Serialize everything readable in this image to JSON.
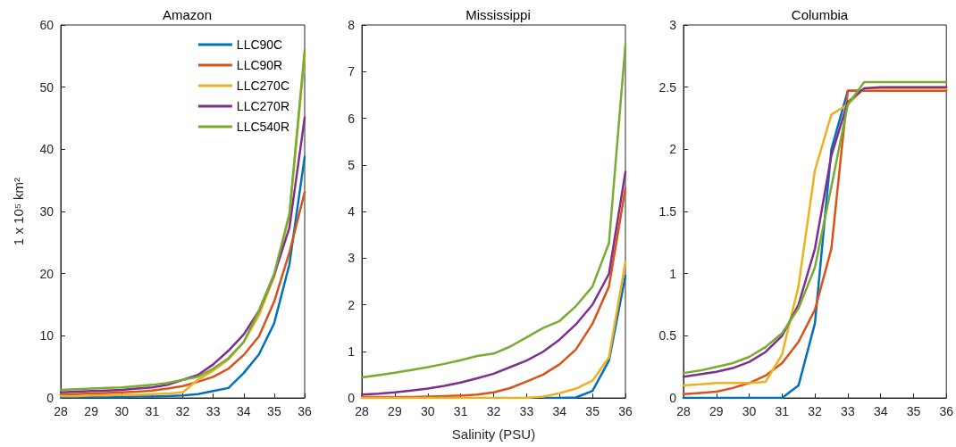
{
  "chart_data": [
    {
      "type": "line",
      "title": "Amazon",
      "ylabel": "1 x 10⁵ km²",
      "x": [
        28,
        28.5,
        29,
        29.5,
        30,
        30.5,
        31,
        31.5,
        32,
        32.5,
        33,
        33.5,
        34,
        34.5,
        35,
        35.5,
        36
      ],
      "xlim": [
        28,
        36
      ],
      "xticks": [
        28,
        29,
        30,
        31,
        32,
        33,
        34,
        35,
        36
      ],
      "ylim": [
        0,
        60
      ],
      "yticks": [
        0,
        10,
        20,
        30,
        40,
        50,
        60
      ],
      "legend": "top right",
      "marker": "none",
      "grid": false,
      "series": [
        {
          "name": "LLC90C",
          "color": "#0072bd",
          "values": [
            0.1,
            0.1,
            0.1,
            0.1,
            0.1,
            0.2,
            0.2,
            0.3,
            0.4,
            0.6,
            1.1,
            1.6,
            4.0,
            7.0,
            12.0,
            21.5,
            38.8
          ]
        },
        {
          "name": "LLC90R",
          "color": "#d95319",
          "values": [
            0.5,
            0.6,
            0.7,
            0.8,
            0.9,
            1.0,
            1.2,
            1.5,
            1.9,
            2.6,
            3.4,
            4.7,
            6.9,
            9.9,
            15.5,
            23.4,
            33.1
          ]
        },
        {
          "name": "LLC270C",
          "color": "#edb120",
          "values": [
            0.3,
            0.3,
            0.4,
            0.4,
            0.5,
            0.5,
            0.6,
            0.7,
            0.9,
            2.9,
            4.4,
            6.2,
            9.0,
            13.3,
            19.5,
            29.6,
            55.0
          ]
        },
        {
          "name": "LLC270R",
          "color": "#7e2f8e",
          "values": [
            0.9,
            1.0,
            1.1,
            1.2,
            1.3,
            1.5,
            1.7,
            2.1,
            2.9,
            3.7,
            5.4,
            7.6,
            10.2,
            14.0,
            19.8,
            27.4,
            45.1
          ]
        },
        {
          "name": "LLC540R",
          "color": "#77ac30",
          "values": [
            1.3,
            1.4,
            1.5,
            1.6,
            1.7,
            1.9,
            2.1,
            2.4,
            2.9,
            3.4,
            4.7,
            6.4,
            9.0,
            14.0,
            20.0,
            29.6,
            56.0
          ]
        }
      ]
    },
    {
      "type": "line",
      "title": "Mississippi",
      "xlabel": "Salinity (PSU)",
      "x": [
        28,
        28.5,
        29,
        29.5,
        30,
        30.5,
        31,
        31.5,
        32,
        32.5,
        33,
        33.5,
        34,
        34.5,
        35,
        35.5,
        36
      ],
      "xlim": [
        28,
        36
      ],
      "xticks": [
        28,
        29,
        30,
        31,
        32,
        33,
        34,
        35,
        36
      ],
      "ylim": [
        0,
        8
      ],
      "yticks": [
        0,
        1,
        2,
        3,
        4,
        5,
        6,
        7,
        8
      ],
      "legend": false,
      "marker": "none",
      "grid": false,
      "series": [
        {
          "color": "#0072bd",
          "values": [
            null,
            null,
            null,
            null,
            null,
            null,
            null,
            null,
            null,
            null,
            null,
            0,
            0,
            0.01,
            0.15,
            0.8,
            2.62
          ]
        },
        {
          "color": "#d95319",
          "values": [
            0.02,
            0.02,
            0.02,
            0.02,
            0.03,
            0.04,
            0.05,
            0.07,
            0.12,
            0.21,
            0.35,
            0.5,
            0.72,
            1.04,
            1.59,
            2.39,
            4.5
          ]
        },
        {
          "color": "#edb120",
          "values": [
            0,
            0,
            0,
            0,
            0,
            0,
            0,
            0,
            0,
            0,
            0,
            0.03,
            0.1,
            0.2,
            0.37,
            0.87,
            2.92
          ]
        },
        {
          "color": "#7e2f8e",
          "values": [
            0.07,
            0.09,
            0.12,
            0.16,
            0.2,
            0.26,
            0.33,
            0.42,
            0.52,
            0.66,
            0.8,
            0.99,
            1.25,
            1.58,
            2.0,
            2.66,
            4.85
          ]
        },
        {
          "color": "#77ac30",
          "values": [
            0.44,
            0.49,
            0.54,
            0.6,
            0.66,
            0.73,
            0.81,
            0.9,
            0.95,
            1.1,
            1.3,
            1.5,
            1.65,
            1.97,
            2.39,
            3.32,
            7.58
          ]
        }
      ]
    },
    {
      "type": "line",
      "title": "Columbia",
      "x": [
        28,
        28.5,
        29,
        29.5,
        30,
        30.5,
        31,
        31.5,
        32,
        32.5,
        33,
        33.5,
        34,
        34.5,
        35,
        35.5,
        36
      ],
      "xlim": [
        28,
        36
      ],
      "xticks": [
        28,
        29,
        30,
        31,
        32,
        33,
        34,
        35,
        36
      ],
      "ylim": [
        0,
        3
      ],
      "yticks": [
        0,
        0.5,
        1,
        1.5,
        2,
        2.5,
        3
      ],
      "legend": false,
      "marker": "none",
      "grid": false,
      "series": [
        {
          "color": "#0072bd",
          "values": [
            0,
            0,
            0,
            0,
            0,
            0,
            0,
            0.1,
            0.6,
            2.0,
            2.47,
            2.47,
            null,
            null,
            null,
            null,
            null
          ]
        },
        {
          "color": "#d95319",
          "values": [
            0.03,
            0.04,
            0.05,
            0.08,
            0.12,
            0.18,
            0.28,
            0.45,
            0.71,
            1.2,
            2.47,
            2.47,
            2.47,
            2.47,
            2.47,
            2.47,
            2.47
          ]
        },
        {
          "color": "#edb120",
          "values": [
            0.1,
            0.11,
            0.12,
            0.12,
            0.12,
            0.13,
            0.35,
            0.9,
            1.83,
            2.28,
            2.36,
            2.49,
            2.49,
            2.49,
            2.49,
            2.49,
            2.49
          ]
        },
        {
          "color": "#7e2f8e",
          "values": [
            0.17,
            0.19,
            0.21,
            0.24,
            0.29,
            0.37,
            0.5,
            0.75,
            1.2,
            1.95,
            2.38,
            2.49,
            2.5,
            2.5,
            2.5,
            2.5,
            2.5
          ]
        },
        {
          "color": "#77ac30",
          "values": [
            0.2,
            0.22,
            0.25,
            0.28,
            0.33,
            0.41,
            0.52,
            0.72,
            1.05,
            1.7,
            2.36,
            2.54,
            2.54,
            2.54,
            2.54,
            2.54,
            2.54
          ]
        }
      ]
    }
  ]
}
